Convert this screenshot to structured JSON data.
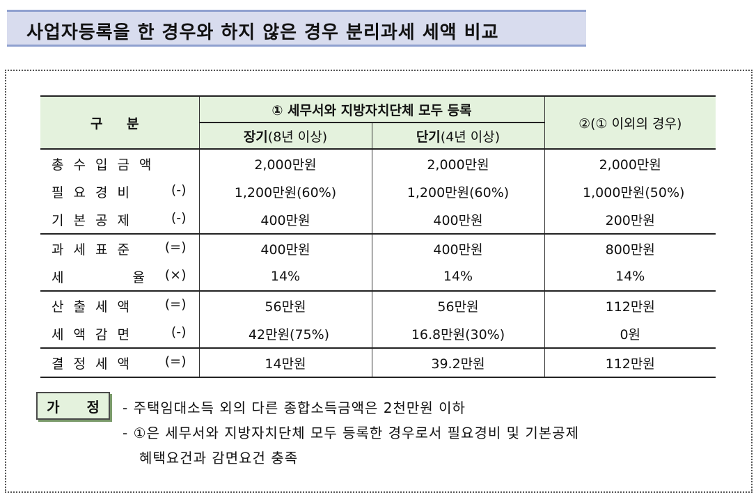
{
  "title": "사업자등록을 한 경우와 하지 않은 경우 분리과세 세액 비교",
  "table": {
    "header": {
      "category": "구  분",
      "case1": "① 세무서와 지방자치단체 모두 등록",
      "case1_long_bold": "장기",
      "case1_long_rest": "(8년 이상)",
      "case1_short_bold": "단기",
      "case1_short_rest": "(4년 이상)",
      "case2": "②(① 이외의 경우)"
    },
    "rows": [
      {
        "name": "총수입금액",
        "op": "",
        "long": "2,000만원",
        "short": "2,000만원",
        "other": "2,000만원"
      },
      {
        "name": "필요경비",
        "op": "(-)",
        "long": "1,200만원(60%)",
        "short": "1,200만원(60%)",
        "other": "1,000만원(50%)"
      },
      {
        "name": "기본공제",
        "op": "(-)",
        "long": "400만원",
        "short": "400만원",
        "other": "200만원"
      },
      {
        "name": "과세표준",
        "op": "(=)",
        "long": "400만원",
        "short": "400만원",
        "other": "800만원"
      },
      {
        "name": "세율",
        "op": "(×)",
        "long": "14%",
        "short": "14%",
        "other": "14%"
      },
      {
        "name": "산출세액",
        "op": "(=)",
        "long": "56만원",
        "short": "56만원",
        "other": "112만원"
      },
      {
        "name": "세액감면",
        "op": "(-)",
        "long": "42만원(75%)",
        "short": "16.8만원(30%)",
        "other": "0원"
      },
      {
        "name": "결정세액",
        "op": "(=)",
        "long": "14만원",
        "short": "39.2만원",
        "other": "112만원"
      }
    ]
  },
  "assumption": {
    "label": "가 정",
    "line1": "- 주택임대소득 외의 다른 종합소득금액은 2천만원 이하",
    "line2": "- ①은 세무서와 지방자치단체 모두 등록한 경우로서 필요경비 및 기본공제",
    "line3": "혜택요건과 감면요건 충족"
  }
}
